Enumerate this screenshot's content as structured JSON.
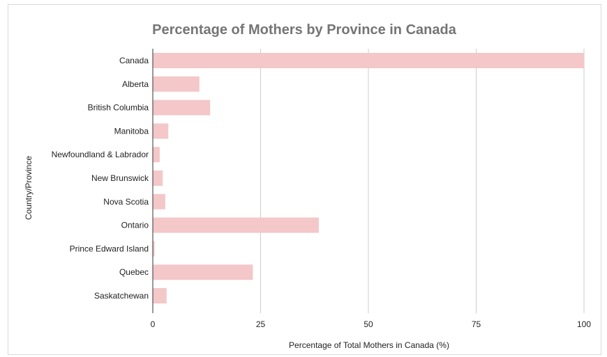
{
  "chart_data": {
    "type": "bar",
    "orientation": "horizontal",
    "title": "Percentage of Mothers by Province in Canada",
    "xlabel": "Percentage of Total Mothers in Canada (%)",
    "ylabel": "Country/Province",
    "categories": [
      "Canada",
      "Alberta",
      "British Columbia",
      "Manitoba",
      "Newfoundland & Labrador",
      "New Brunswick",
      "Nova Scotia",
      "Ontario",
      "Prince Edward Island",
      "Quebec",
      "Saskatchewan"
    ],
    "values": [
      100,
      10.8,
      13.3,
      3.6,
      1.6,
      2.3,
      2.9,
      38.5,
      0.4,
      23.2,
      3.2
    ],
    "xlim": [
      0,
      100
    ],
    "xticks": [
      "0",
      "25",
      "50",
      "75",
      "100"
    ],
    "grid": true,
    "bar_color": "#f4c7c8"
  }
}
